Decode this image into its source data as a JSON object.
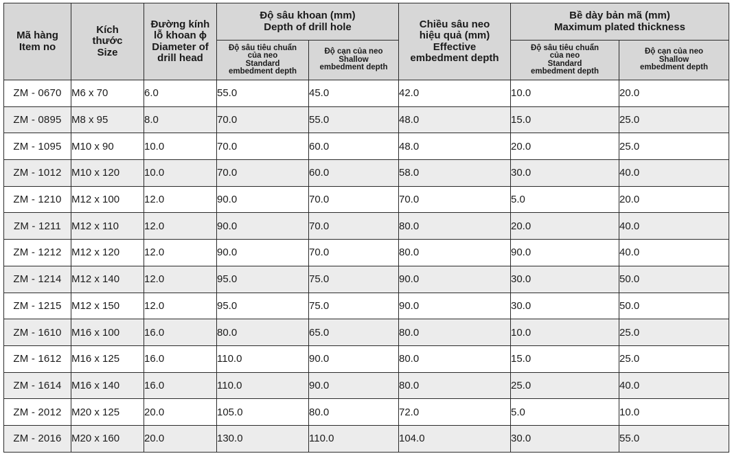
{
  "headers": {
    "item": [
      "Mã hàng",
      "Item no"
    ],
    "size": [
      "Kích",
      "thước",
      "Size"
    ],
    "diameter": [
      "Đường kính",
      "lỗ khoan ϕ",
      "Diameter of",
      "drill head"
    ],
    "drill_depth": [
      "Độ sâu khoan (mm)",
      "Depth of drill hole"
    ],
    "effective": [
      "Chiều sâu neo",
      "hiệu quả (mm)",
      "Effective",
      "embedment depth"
    ],
    "plated": [
      "Bề dày bản mã (mm)",
      "Maximum plated thickness"
    ],
    "standard": [
      "Độ sâu tiêu chuẩn",
      "của neo",
      "Standard",
      "embedment depth"
    ],
    "shallow": [
      "Độ cạn của neo",
      "Shallow",
      "embedment depth"
    ]
  },
  "rows": [
    [
      "ZM - 0670",
      "M6 x 70",
      "6.0",
      "55.0",
      "45.0",
      "42.0",
      "10.0",
      "20.0"
    ],
    [
      "ZM - 0895",
      "M8 x 95",
      "8.0",
      "70.0",
      "55.0",
      "48.0",
      "15.0",
      "25.0"
    ],
    [
      "ZM - 1095",
      "M10 x 90",
      "10.0",
      "70.0",
      "60.0",
      "48.0",
      "20.0",
      "25.0"
    ],
    [
      "ZM - 1012",
      "M10 x 120",
      "10.0",
      "70.0",
      "60.0",
      "58.0",
      "30.0",
      "40.0"
    ],
    [
      "ZM - 1210",
      "M12 x 100",
      "12.0",
      "90.0",
      "70.0",
      "70.0",
      "5.0",
      "20.0"
    ],
    [
      "ZM - 1211",
      "M12 x 110",
      "12.0",
      "90.0",
      "70.0",
      "80.0",
      "20.0",
      "40.0"
    ],
    [
      "ZM - 1212",
      "M12 x 120",
      "12.0",
      "90.0",
      "70.0",
      "80.0",
      "90.0",
      "40.0"
    ],
    [
      "ZM - 1214",
      "M12 x 140",
      "12.0",
      "95.0",
      "75.0",
      "90.0",
      "30.0",
      "50.0"
    ],
    [
      "ZM - 1215",
      "M12 x 150",
      "12.0",
      "95.0",
      "75.0",
      "90.0",
      "30.0",
      "50.0"
    ],
    [
      "ZM - 1610",
      "M16 x 100",
      "16.0",
      "80.0",
      "65.0",
      "80.0",
      "10.0",
      "25.0"
    ],
    [
      "ZM - 1612",
      "M16 x 125",
      "16.0",
      "110.0",
      "90.0",
      "80.0",
      "15.0",
      "25.0"
    ],
    [
      "ZM - 1614",
      "M16 x 140",
      "16.0",
      "110.0",
      "90.0",
      "80.0",
      "25.0",
      "40.0"
    ],
    [
      "ZM - 2012",
      "M20 x 125",
      "20.0",
      "105.0",
      "80.0",
      "72.0",
      "5.0",
      "10.0"
    ],
    [
      "ZM - 2016",
      "M20 x 160",
      "20.0",
      "130.0",
      "110.0",
      "104.0",
      "30.0",
      "55.0"
    ]
  ]
}
